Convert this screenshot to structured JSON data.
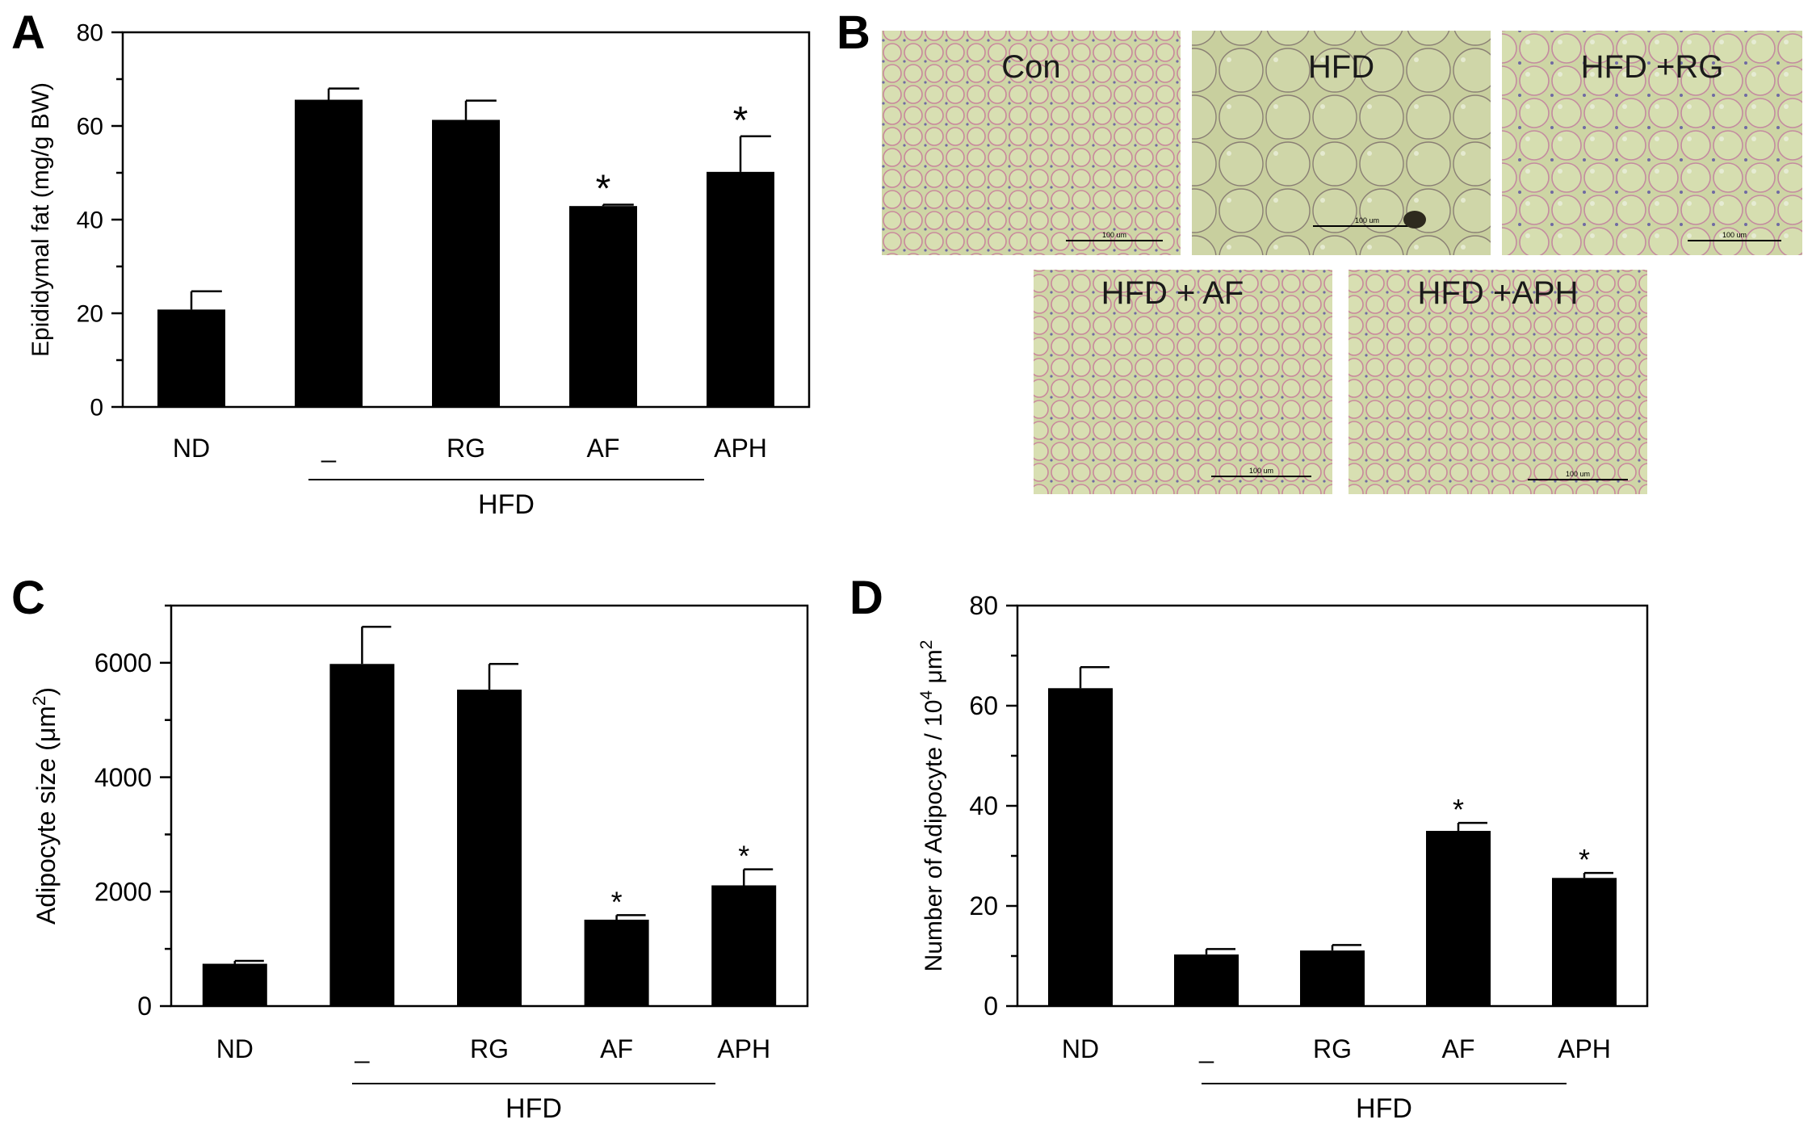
{
  "panels": {
    "A": "A",
    "B": "B",
    "C": "C",
    "D": "D"
  },
  "micrographs": {
    "labels": [
      "Con",
      "HFD",
      "HFD +RG",
      "HFD + AF",
      "HFD +APH"
    ],
    "scale_bar_text": "100 um",
    "colors": {
      "tissue_bg": "#cfd6a6",
      "cell_border": "#c9889c",
      "nuclei": "#6f6aa3"
    }
  },
  "chart_data": [
    {
      "panel": "A",
      "type": "bar",
      "categories": [
        "ND",
        "_",
        "RG",
        "AF",
        "APH"
      ],
      "values": [
        20.8,
        65.6,
        61.3,
        42.9,
        50.2
      ],
      "errors": [
        3.9,
        2.4,
        4.1,
        0.3,
        7.6
      ],
      "significant": [
        false,
        false,
        false,
        true,
        true
      ],
      "marker": "*",
      "group_label": "HFD",
      "ylabel": "Epididymal fat (mg/g BW)",
      "yticks": [
        0,
        20,
        40,
        60,
        80
      ],
      "ylim": [
        0,
        80
      ]
    },
    {
      "panel": "C",
      "type": "bar",
      "categories": [
        "ND",
        "_",
        "RG",
        "AF",
        "APH"
      ],
      "values": [
        740,
        5980,
        5530,
        1510,
        2110
      ],
      "errors": [
        50,
        650,
        450,
        80,
        280
      ],
      "significant": [
        false,
        false,
        false,
        true,
        true
      ],
      "marker": "*",
      "group_label": "HFD",
      "ylabel": "Adipocyte size (μm",
      "ylabel_sup": "2",
      "ylabel_end": ")",
      "yticks": [
        0,
        2000,
        4000,
        6000
      ],
      "ylim": [
        0,
        7000
      ]
    },
    {
      "panel": "D",
      "type": "bar",
      "categories": [
        "ND",
        "_",
        "RG",
        "AF",
        "APH"
      ],
      "values": [
        63.5,
        10.3,
        11.1,
        35.0,
        25.6
      ],
      "errors": [
        4.2,
        1.1,
        1.1,
        1.6,
        1.0
      ],
      "significant": [
        false,
        false,
        false,
        true,
        true
      ],
      "marker": "*",
      "group_label": "HFD",
      "ylabel": "Number of Adipocyte / 10",
      "ylabel_sup": "4",
      "ylabel_mid": " μm",
      "ylabel_sup2": "2",
      "yticks": [
        0,
        20,
        40,
        60,
        80
      ],
      "ylim": [
        0,
        80
      ]
    }
  ]
}
